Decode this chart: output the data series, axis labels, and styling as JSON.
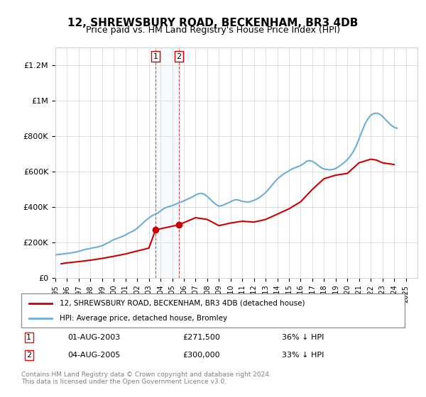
{
  "title": "12, SHREWSBURY ROAD, BECKENHAM, BR3 4DB",
  "subtitle": "Price paid vs. HM Land Registry's House Price Index (HPI)",
  "hpi_label": "HPI: Average price, detached house, Bromley",
  "price_label": "12, SHREWSBURY ROAD, BECKENHAM, BR3 4DB (detached house)",
  "footnote": "Contains HM Land Registry data © Crown copyright and database right 2024.\nThis data is licensed under the Open Government Licence v3.0.",
  "purchase1_date": "01-AUG-2003",
  "purchase1_price": 271500,
  "purchase1_pct": "36% ↓ HPI",
  "purchase2_date": "04-AUG-2005",
  "purchase2_price": 300000,
  "purchase2_pct": "33% ↓ HPI",
  "purchase1_x": 2003.58,
  "purchase2_x": 2005.58,
  "hpi_color": "#6baed6",
  "price_color": "#cc0000",
  "vline1_color": "#cc0000",
  "vline2_color": "#cc0000",
  "background_color": "#ffffff",
  "ylim_min": 0,
  "ylim_max": 1300000,
  "xlim_min": 1995,
  "xlim_max": 2026,
  "hpi_years": [
    1995,
    1995.25,
    1995.5,
    1995.75,
    1996,
    1996.25,
    1996.5,
    1996.75,
    1997,
    1997.25,
    1997.5,
    1997.75,
    1998,
    1998.25,
    1998.5,
    1998.75,
    1999,
    1999.25,
    1999.5,
    1999.75,
    2000,
    2000.25,
    2000.5,
    2000.75,
    2001,
    2001.25,
    2001.5,
    2001.75,
    2002,
    2002.25,
    2002.5,
    2002.75,
    2003,
    2003.25,
    2003.5,
    2003.75,
    2004,
    2004.25,
    2004.5,
    2004.75,
    2005,
    2005.25,
    2005.5,
    2005.75,
    2006,
    2006.25,
    2006.5,
    2006.75,
    2007,
    2007.25,
    2007.5,
    2007.75,
    2008,
    2008.25,
    2008.5,
    2008.75,
    2009,
    2009.25,
    2009.5,
    2009.75,
    2010,
    2010.25,
    2010.5,
    2010.75,
    2011,
    2011.25,
    2011.5,
    2011.75,
    2012,
    2012.25,
    2012.5,
    2012.75,
    2013,
    2013.25,
    2013.5,
    2013.75,
    2014,
    2014.25,
    2014.5,
    2014.75,
    2015,
    2015.25,
    2015.5,
    2015.75,
    2016,
    2016.25,
    2016.5,
    2016.75,
    2017,
    2017.25,
    2017.5,
    2017.75,
    2018,
    2018.25,
    2018.5,
    2018.75,
    2019,
    2019.25,
    2019.5,
    2019.75,
    2020,
    2020.25,
    2020.5,
    2020.75,
    2021,
    2021.25,
    2021.5,
    2021.75,
    2022,
    2022.25,
    2022.5,
    2022.75,
    2023,
    2023.25,
    2023.5,
    2023.75,
    2024,
    2024.25
  ],
  "hpi_values": [
    130000,
    132000,
    134000,
    136000,
    138000,
    140000,
    143000,
    146000,
    150000,
    155000,
    160000,
    163000,
    166000,
    170000,
    173000,
    177000,
    182000,
    190000,
    198000,
    207000,
    216000,
    222000,
    228000,
    235000,
    242000,
    252000,
    260000,
    268000,
    280000,
    295000,
    310000,
    325000,
    338000,
    350000,
    358000,
    365000,
    378000,
    390000,
    398000,
    403000,
    408000,
    415000,
    422000,
    428000,
    435000,
    442000,
    450000,
    458000,
    468000,
    475000,
    478000,
    472000,
    460000,
    445000,
    428000,
    415000,
    405000,
    408000,
    415000,
    422000,
    430000,
    438000,
    442000,
    438000,
    432000,
    430000,
    428000,
    432000,
    438000,
    445000,
    455000,
    468000,
    482000,
    500000,
    520000,
    540000,
    558000,
    572000,
    585000,
    595000,
    605000,
    615000,
    622000,
    628000,
    635000,
    645000,
    658000,
    662000,
    658000,
    648000,
    635000,
    622000,
    615000,
    612000,
    610000,
    612000,
    618000,
    628000,
    640000,
    652000,
    668000,
    688000,
    712000,
    745000,
    785000,
    828000,
    868000,
    898000,
    918000,
    928000,
    930000,
    925000,
    912000,
    895000,
    878000,
    862000,
    850000,
    845000
  ],
  "price_years": [
    1995.5,
    1996.0,
    1997.0,
    1998.0,
    1999.0,
    2000.0,
    2001.0,
    2002.0,
    2003.0,
    2003.58,
    2005.58,
    2007.0,
    2008.0,
    2009.0,
    2010.0,
    2011.0,
    2012.0,
    2013.0,
    2014.0,
    2015.0,
    2016.0,
    2017.0,
    2018.0,
    2019.0,
    2020.0,
    2021.0,
    2022.0,
    2022.5,
    2023.0,
    2023.5,
    2024.0
  ],
  "price_values": [
    80000,
    85000,
    92000,
    100000,
    110000,
    122000,
    135000,
    152000,
    168000,
    271500,
    300000,
    340000,
    330000,
    295000,
    310000,
    320000,
    315000,
    330000,
    360000,
    390000,
    430000,
    500000,
    560000,
    580000,
    590000,
    650000,
    670000,
    665000,
    650000,
    645000,
    640000
  ]
}
